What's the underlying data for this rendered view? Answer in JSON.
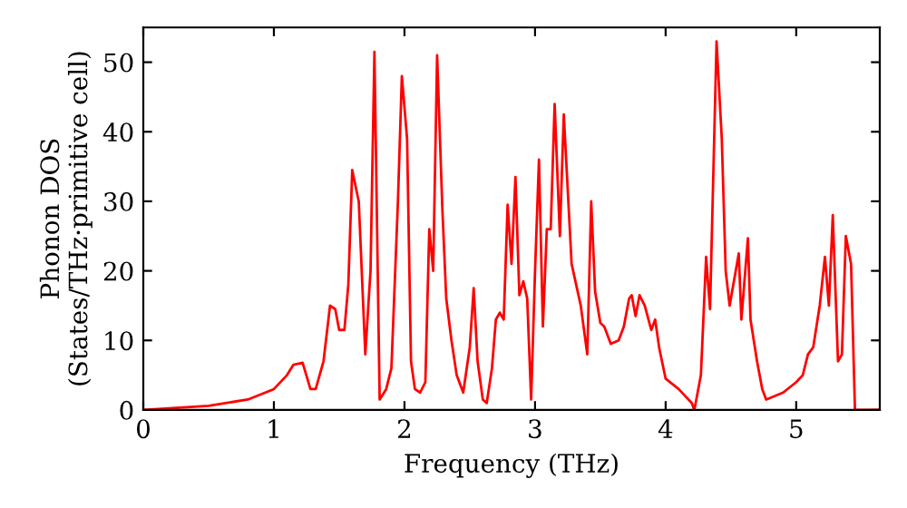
{
  "chart_data": {
    "type": "line",
    "xlabel": "Frequency (THz)",
    "ylabel": "Phonon DOS\n(States/THz·primitive cell)",
    "xlim": [
      0,
      5.64
    ],
    "ylim": [
      0,
      55
    ],
    "xticks": [
      0,
      1,
      2,
      3,
      4,
      5
    ],
    "yticks": [
      0,
      10,
      20,
      30,
      40,
      50
    ],
    "grid": false,
    "series": [
      {
        "color": "#ff0000",
        "x": [
          0,
          0.5,
          0.8,
          1.0,
          1.1,
          1.15,
          1.22,
          1.28,
          1.32,
          1.38,
          1.43,
          1.47,
          1.5,
          1.54,
          1.57,
          1.6,
          1.65,
          1.7,
          1.74,
          1.77,
          1.81,
          1.86,
          1.9,
          1.95,
          1.98,
          2.02,
          2.05,
          2.08,
          2.12,
          2.16,
          2.19,
          2.22,
          2.25,
          2.29,
          2.32,
          2.36,
          2.4,
          2.45,
          2.5,
          2.53,
          2.56,
          2.6,
          2.63,
          2.67,
          2.7,
          2.73,
          2.76,
          2.79,
          2.82,
          2.85,
          2.88,
          2.91,
          2.94,
          2.97,
          3.0,
          3.03,
          3.06,
          3.09,
          3.12,
          3.15,
          3.19,
          3.22,
          3.28,
          3.35,
          3.4,
          3.43,
          3.46,
          3.5,
          3.53,
          3.58,
          3.64,
          3.68,
          3.72,
          3.74,
          3.77,
          3.8,
          3.84,
          3.89,
          3.92,
          3.95,
          4.0,
          4.1,
          4.2,
          4.22,
          4.27,
          4.31,
          4.34,
          4.39,
          4.43,
          4.46,
          4.49,
          4.56,
          4.58,
          4.63,
          4.65,
          4.7,
          4.74,
          4.77,
          4.9,
          5.0,
          5.05,
          5.09,
          5.13,
          5.18,
          5.22,
          5.25,
          5.28,
          5.32,
          5.35,
          5.38,
          5.42,
          5.45,
          5.64
        ],
        "values": [
          0,
          0.6,
          1.5,
          3,
          5,
          6.5,
          6.8,
          3,
          3,
          7,
          15,
          14.5,
          11.5,
          11.5,
          18,
          34.5,
          30,
          8,
          20,
          51.5,
          1.5,
          3,
          6,
          30,
          48,
          39,
          7,
          3,
          2.5,
          4,
          26,
          20,
          51,
          29,
          16,
          10,
          5,
          2.5,
          9,
          17.5,
          7,
          1.5,
          1,
          6,
          13,
          14,
          13,
          29.5,
          21,
          33.5,
          16.5,
          18.5,
          16,
          1.5,
          20,
          36,
          12,
          26,
          26,
          44,
          25,
          42.5,
          21,
          15,
          8,
          30,
          17,
          12.5,
          12,
          9.5,
          10,
          12,
          16,
          16.5,
          13.5,
          16.5,
          15,
          11.5,
          13,
          9,
          4.5,
          3,
          1,
          0,
          5,
          22,
          14.5,
          53,
          39,
          20,
          15,
          22.5,
          13,
          24.7,
          13,
          7,
          3,
          1.5,
          2.5,
          4,
          5,
          8,
          9,
          15,
          22,
          15,
          28,
          7,
          8,
          25,
          21,
          0,
          0
        ]
      }
    ]
  }
}
